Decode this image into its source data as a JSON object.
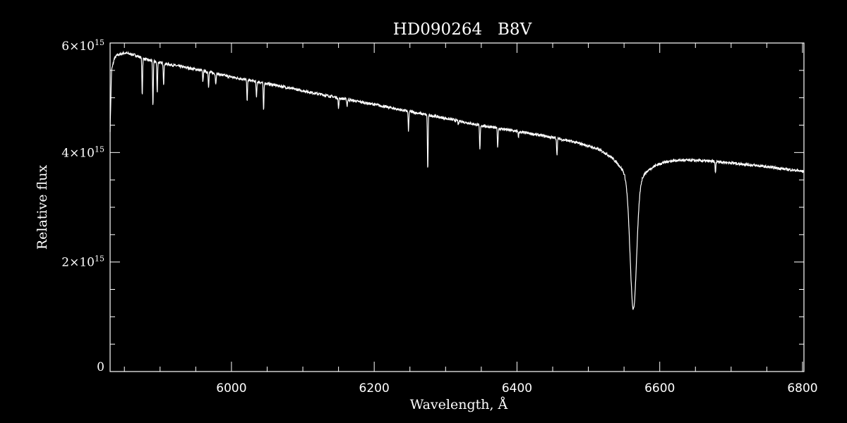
{
  "chart_data": {
    "type": "line",
    "title": "HD090264   B8V",
    "xlabel": "Wavelength, Å",
    "ylabel": "Relative flux",
    "xlim": [
      5830,
      6802
    ],
    "ylim": [
      0,
      6000000000000000.0
    ],
    "grid": false,
    "x_ticks": [
      {
        "value": 6000,
        "label": "6000"
      },
      {
        "value": 6200,
        "label": "6200"
      },
      {
        "value": 6400,
        "label": "6400"
      },
      {
        "value": 6600,
        "label": "6600"
      },
      {
        "value": 6800,
        "label": "6800"
      }
    ],
    "y_ticks": [
      {
        "value": 0,
        "mantissa": "0",
        "exponent": ""
      },
      {
        "value": 2000000000000000.0,
        "mantissa": "2×10",
        "exponent": "15"
      },
      {
        "value": 4000000000000000.0,
        "mantissa": "4×10",
        "exponent": "15"
      },
      {
        "value": 6000000000000000.0,
        "mantissa": "6×10",
        "exponent": "15"
      }
    ],
    "series": [
      {
        "color": "#ffffff",
        "continuum": {
          "x": [
            5830,
            5832,
            5836,
            5840,
            5850,
            5865,
            5880,
            5900,
            5950,
            6000,
            6050,
            6100,
            6150,
            6200,
            6250,
            6300,
            6350,
            6400,
            6450,
            6500,
            6550,
            6600,
            6650,
            6700,
            6750,
            6802
          ],
          "y": [
            4400000000000000.0,
            5500000000000000.0,
            5720000000000000.0,
            5780000000000000.0,
            5820000000000000.0,
            5780000000000000.0,
            5700000000000000.0,
            5640000000000000.0,
            5520000000000000.0,
            5380000000000000.0,
            5260000000000000.0,
            5130000000000000.0,
            5000000000000000.0,
            4880000000000000.0,
            4750000000000000.0,
            4630000000000000.0,
            4500000000000000.0,
            4400000000000000.0,
            4300000000000000.0,
            4200000000000000.0,
            4120000000000000.0,
            3980000000000000.0,
            3900000000000000.0,
            3830000000000000.0,
            3750000000000000.0,
            3660000000000000.0
          ]
        },
        "broad_absorption": {
          "center": 6563,
          "depth": 2350000000000000.0,
          "width": 4.5,
          "wing_depth": 600000000000000.0,
          "wing_width": 25
        },
        "absorption_lines": [
          {
            "x": 5875,
            "y": 5050000000000000.0
          },
          {
            "x": 5890,
            "y": 4850000000000000.0
          },
          {
            "x": 5896,
            "y": 5100000000000000.0
          },
          {
            "x": 5905,
            "y": 5250000000000000.0
          },
          {
            "x": 5960,
            "y": 5300000000000000.0
          },
          {
            "x": 5968,
            "y": 5200000000000000.0
          },
          {
            "x": 5978,
            "y": 5250000000000000.0
          },
          {
            "x": 6022,
            "y": 4950000000000000.0
          },
          {
            "x": 6035,
            "y": 5000000000000000.0
          },
          {
            "x": 6045,
            "y": 4750000000000000.0
          },
          {
            "x": 6150,
            "y": 4800000000000000.0
          },
          {
            "x": 6162,
            "y": 4850000000000000.0
          },
          {
            "x": 6248,
            "y": 4400000000000000.0
          },
          {
            "x": 6275,
            "y": 3680000000000000.0
          },
          {
            "x": 6318,
            "y": 4500000000000000.0
          },
          {
            "x": 6348,
            "y": 4050000000000000.0
          },
          {
            "x": 6373,
            "y": 4100000000000000.0
          },
          {
            "x": 6402,
            "y": 4300000000000000.0
          },
          {
            "x": 6456,
            "y": 3980000000000000.0
          },
          {
            "x": 6678,
            "y": 3650000000000000.0
          }
        ]
      }
    ]
  }
}
